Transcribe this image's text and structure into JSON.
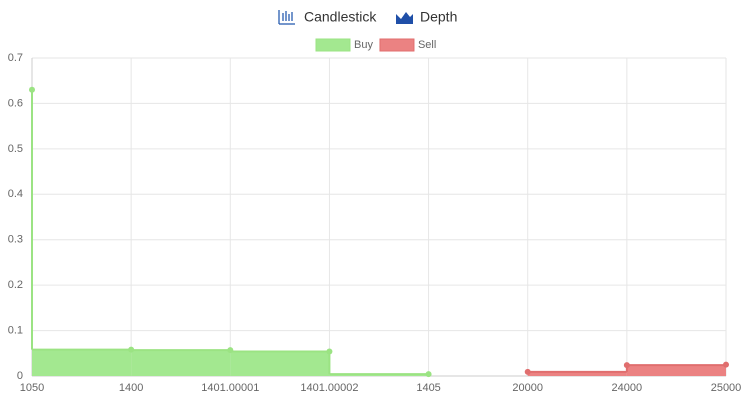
{
  "tabs": [
    "Candlestick",
    "Depth"
  ],
  "chart_data": {
    "type": "line",
    "categories": [
      "1050",
      "1400",
      "1401.00001",
      "1401.00002",
      "1405",
      "20000",
      "24000",
      "25000"
    ],
    "series": [
      {
        "name": "Buy",
        "color": "#a3e890",
        "line_color": "#9be383",
        "stepped": "before",
        "values": [
          0.63,
          0.058,
          0.057,
          0.054,
          0.004,
          null,
          null,
          null
        ]
      },
      {
        "name": "Sell",
        "color": "#eb8282",
        "line_color": "#e06e6e",
        "stepped": "after",
        "values": [
          null,
          null,
          null,
          null,
          null,
          0.009,
          0.024,
          0.025
        ]
      }
    ],
    "ylim": [
      0,
      0.7
    ],
    "yticks": [
      0,
      0.1,
      0.2,
      0.3,
      0.4,
      0.5,
      0.6,
      0.7
    ],
    "grid": true,
    "legend": "top"
  }
}
